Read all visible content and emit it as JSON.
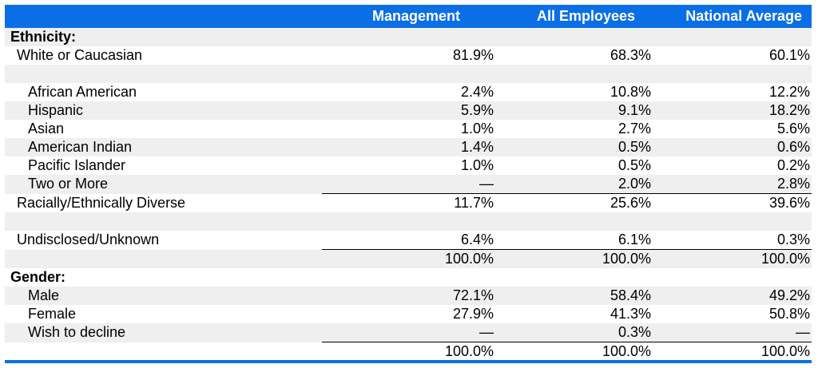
{
  "header": {
    "col0": "",
    "col1": "Management",
    "col2": "All Employees",
    "col3": "National Average"
  },
  "colors": {
    "header_bg": "#0a6fe6",
    "header_text": "#ffffff",
    "row_shade": "#efefef"
  },
  "rows": [
    {
      "label": "Ethnicity:",
      "management": "",
      "all_employees": "",
      "national_average": ""
    },
    {
      "label": "White or Caucasian",
      "management": "81.9%",
      "all_employees": "68.3%",
      "national_average": "60.1%"
    },
    {
      "label": "",
      "management": "",
      "all_employees": "",
      "national_average": ""
    },
    {
      "label": "African American",
      "management": "2.4%",
      "all_employees": "10.8%",
      "national_average": "12.2%"
    },
    {
      "label": "Hispanic",
      "management": "5.9%",
      "all_employees": "9.1%",
      "national_average": "18.2%"
    },
    {
      "label": "Asian",
      "management": "1.0%",
      "all_employees": "2.7%",
      "national_average": "5.6%"
    },
    {
      "label": "American Indian",
      "management": "1.4%",
      "all_employees": "0.5%",
      "national_average": "0.6%"
    },
    {
      "label": "Pacific Islander",
      "management": "1.0%",
      "all_employees": "0.5%",
      "national_average": "0.2%"
    },
    {
      "label": "Two or More",
      "management": "—",
      "all_employees": "2.0%",
      "national_average": "2.8%"
    },
    {
      "label": "Racially/Ethnically Diverse",
      "management": "11.7%",
      "all_employees": "25.6%",
      "national_average": "39.6%"
    },
    {
      "label": "",
      "management": "",
      "all_employees": "",
      "national_average": ""
    },
    {
      "label": "Undisclosed/Unknown",
      "management": "6.4%",
      "all_employees": "6.1%",
      "national_average": "0.3%"
    },
    {
      "label": "",
      "management": "100.0%",
      "all_employees": "100.0%",
      "national_average": "100.0%"
    },
    {
      "label": "Gender:",
      "management": "",
      "all_employees": "",
      "national_average": ""
    },
    {
      "label": "Male",
      "management": "72.1%",
      "all_employees": "58.4%",
      "national_average": "49.2%"
    },
    {
      "label": "Female",
      "management": "27.9%",
      "all_employees": "41.3%",
      "national_average": "50.8%"
    },
    {
      "label": "Wish to decline",
      "management": "—",
      "all_employees": "0.3%",
      "national_average": "—"
    },
    {
      "label": "",
      "management": "100.0%",
      "all_employees": "100.0%",
      "national_average": "100.0%"
    }
  ]
}
